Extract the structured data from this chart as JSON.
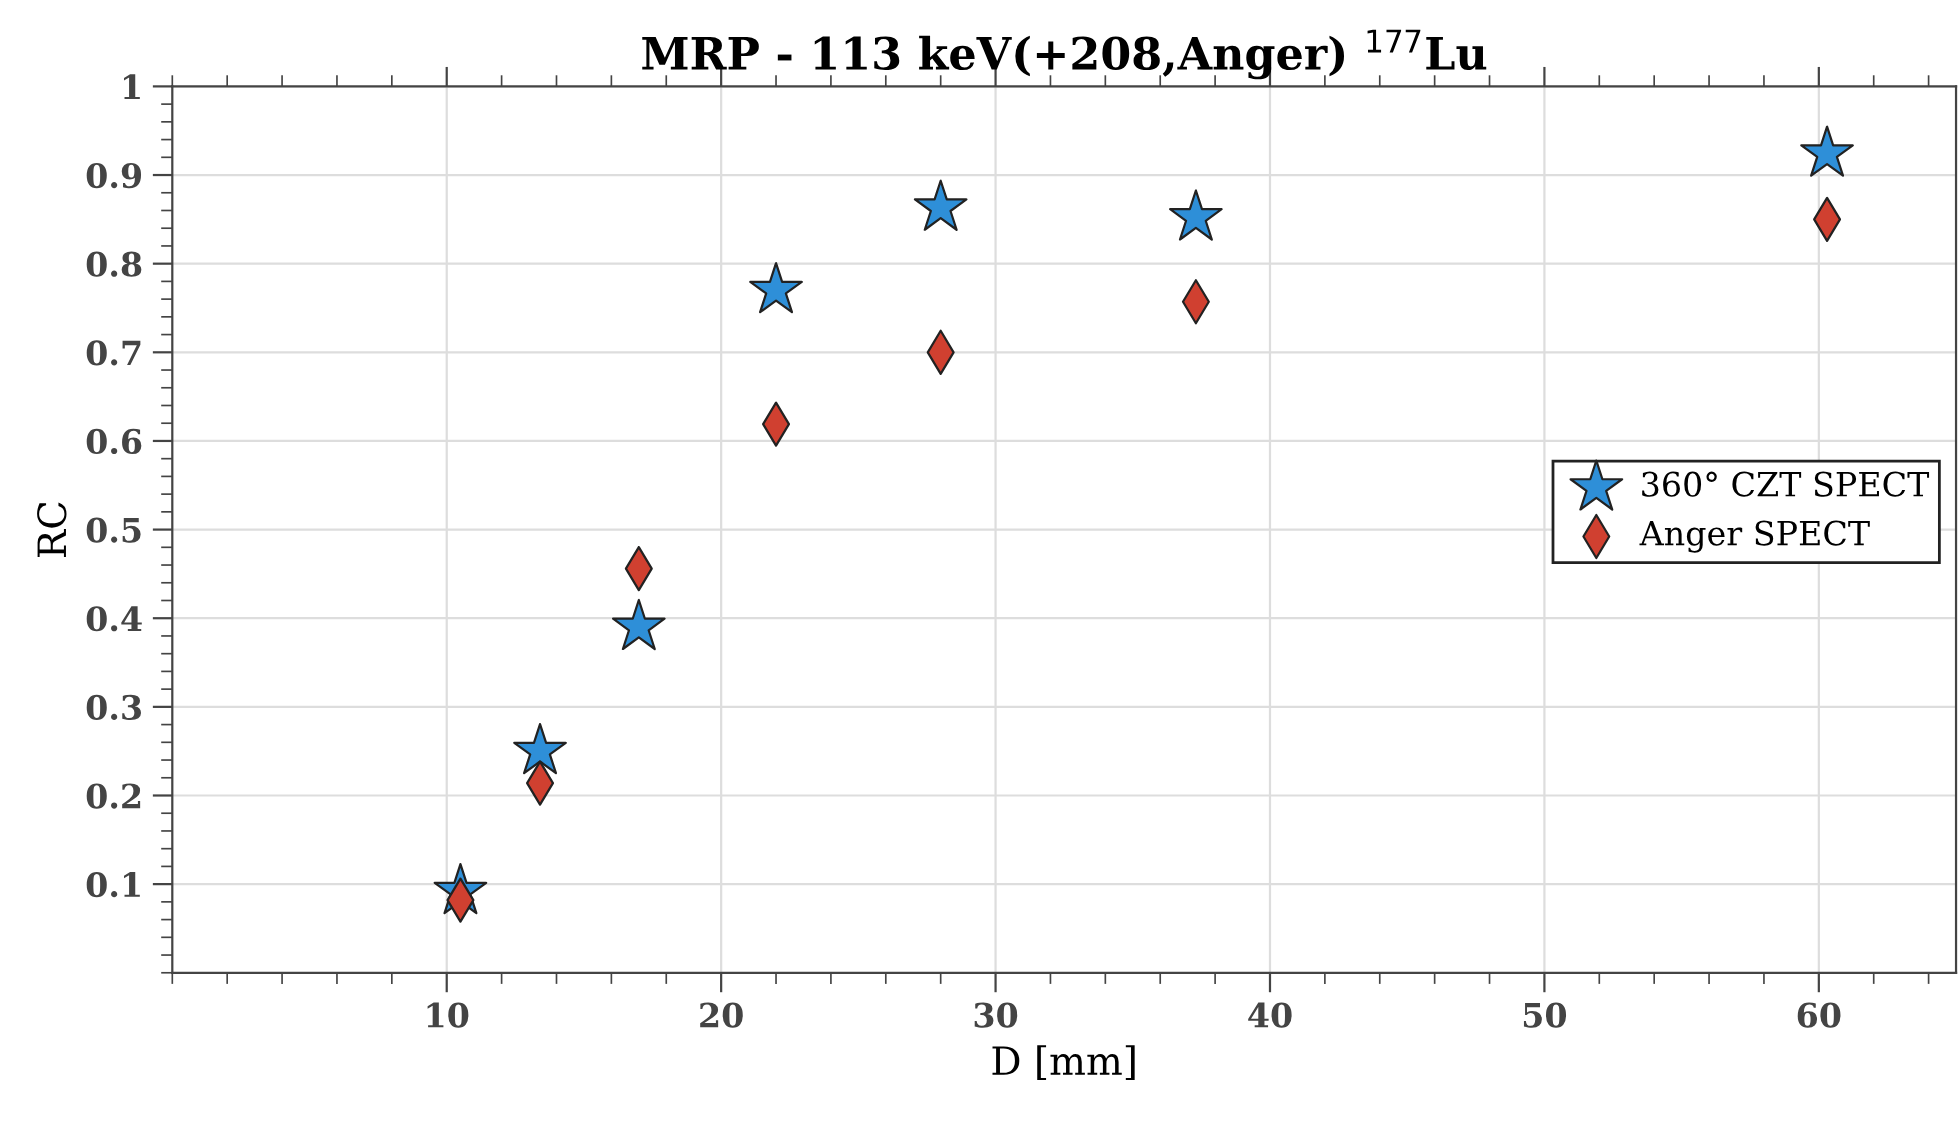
{
  "chart_data": {
    "type": "scatter",
    "title": "MRP - 113 keV(+208,Anger) $^{177}$Lu",
    "xlabel": "D [mm]",
    "ylabel": "RC",
    "x": [
      10.5,
      13.4,
      17.0,
      22.0,
      28.0,
      37.3,
      60.3
    ],
    "series": [
      {
        "name": "360° CZT SPECT",
        "color": "#2e8fd8",
        "marker": "star",
        "values": [
          0.092,
          0.25,
          0.39,
          0.77,
          0.863,
          0.852,
          0.924
        ]
      },
      {
        "name": "Anger SPECT",
        "color": "#d04030",
        "marker": "diamond",
        "values": [
          0.082,
          0.214,
          0.456,
          0.619,
          0.7,
          0.757,
          0.85
        ]
      }
    ],
    "xlim": [
      0,
      65
    ],
    "xticks": [
      10,
      20,
      30,
      40,
      50,
      60
    ],
    "ylim": [
      0,
      1
    ],
    "yticks": [
      0.1,
      0.2,
      0.3,
      0.4,
      0.5,
      0.6,
      0.7,
      0.8,
      0.9,
      1
    ],
    "grid": true,
    "legend": "center right"
  }
}
